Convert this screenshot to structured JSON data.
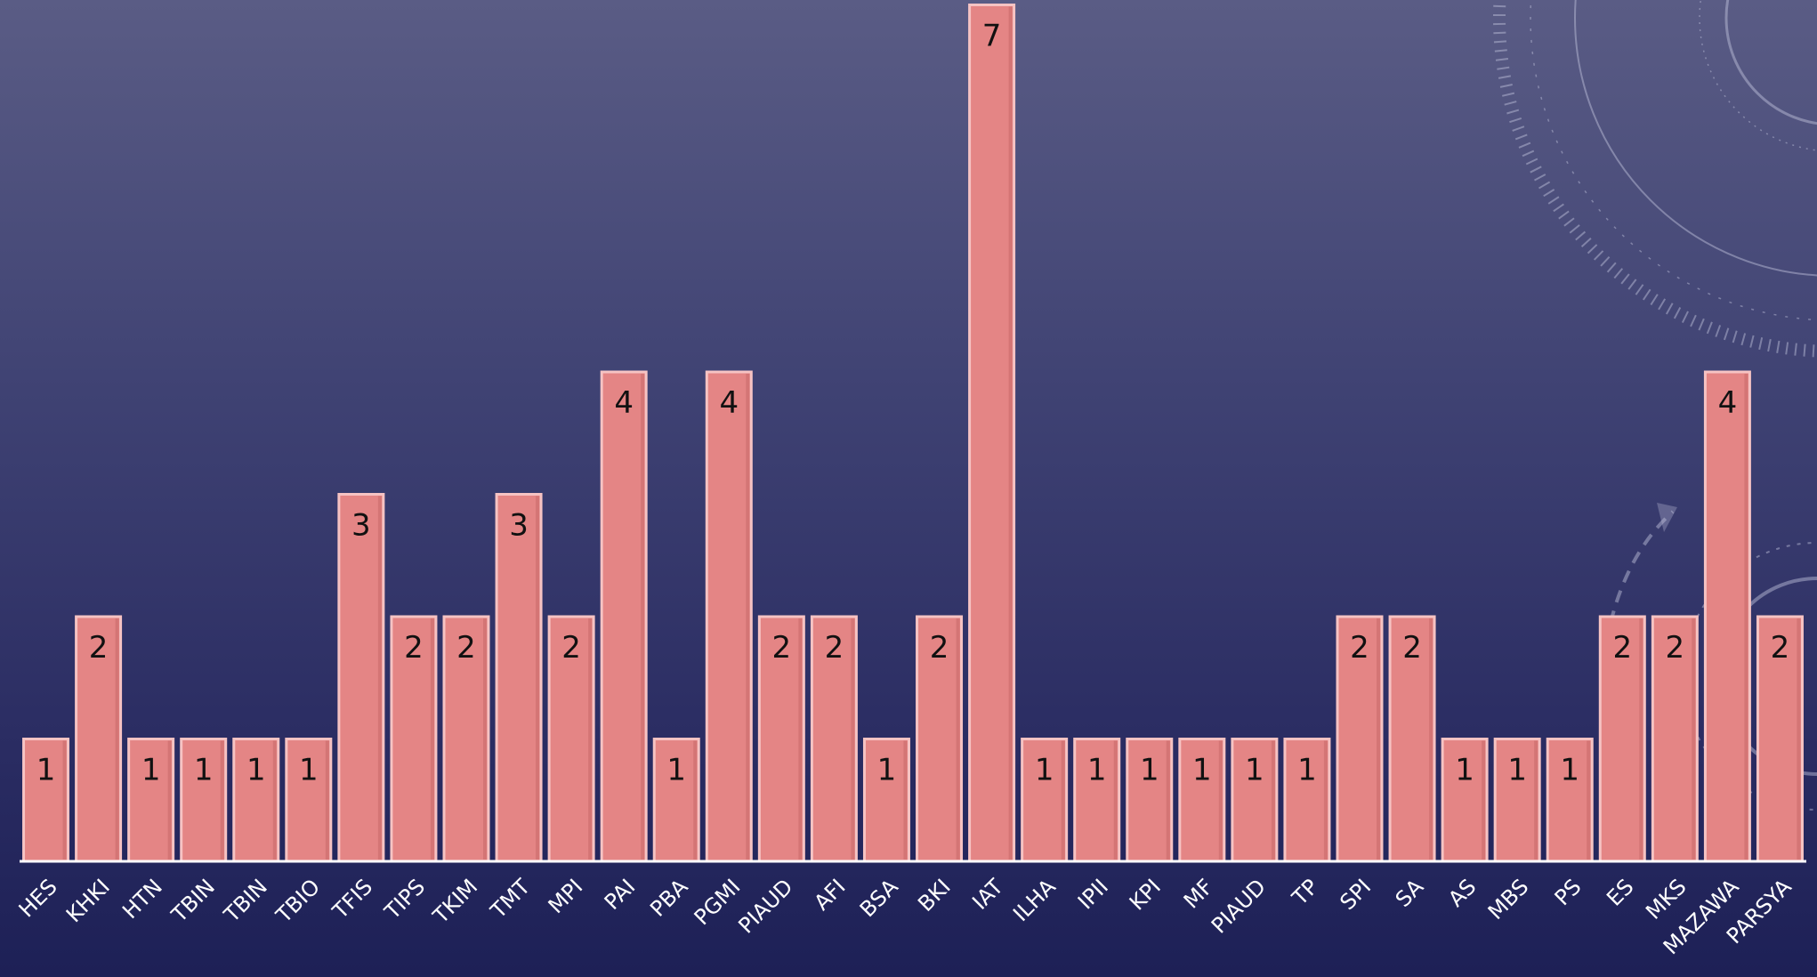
{
  "chart_data": {
    "type": "bar",
    "title": "",
    "xlabel": "",
    "ylabel": "",
    "ylim": [
      0,
      7
    ],
    "categories": [
      "HES",
      "KHKI",
      "HTN",
      "TBIN",
      "TBIN",
      "TBIO",
      "TFIS",
      "TIPS",
      "TKIM",
      "TMT",
      "MPI",
      "PAI",
      "PBA",
      "PGMI",
      "PIAUD",
      "AFI",
      "BSA",
      "BKI",
      "IAT",
      "ILHA",
      "IPII",
      "KPI",
      "MF",
      "PIAUD",
      "TP",
      "SPI",
      "SA",
      "AS",
      "MBS",
      "PS",
      "ES",
      "MKS",
      "MAZAWA",
      "PARSYA"
    ],
    "values": [
      1,
      2,
      1,
      1,
      1,
      1,
      3,
      2,
      2,
      3,
      2,
      4,
      1,
      4,
      2,
      2,
      1,
      2,
      7,
      1,
      1,
      1,
      1,
      1,
      1,
      2,
      2,
      1,
      1,
      1,
      2,
      2,
      4,
      2
    ],
    "data_labels": true,
    "grid": false,
    "colors": {
      "bar_fill": "#e48585",
      "bar_edge": "#f6c3c3",
      "bar_shadow": "#c96a6a",
      "axis": "#ffffff",
      "label_text": "#111111",
      "tick_text": "#ffffff"
    }
  }
}
